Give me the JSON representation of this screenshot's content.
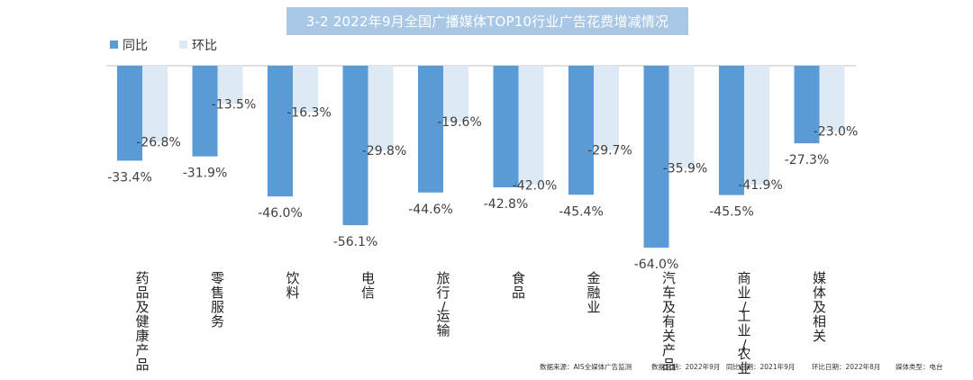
{
  "chart_data": {
    "type": "bar",
    "title": "3-2 2022年9月全国广播媒体TOP10行业广告花费增减情况",
    "categories": [
      "药品及健康产品",
      "零售服务",
      "饮料",
      "电信",
      "旅行/运输",
      "食品",
      "金融业",
      "汽车及有关产品",
      "商业/工业/农业",
      "媒体及相关"
    ],
    "series": [
      {
        "name": "同比",
        "color": "#5b9bd5",
        "values": [
          -33.4,
          -31.9,
          -46.0,
          -56.1,
          -44.6,
          -42.8,
          -45.4,
          -64.0,
          -45.5,
          -27.3
        ],
        "labels": [
          "-33.4%",
          "-31.9%",
          "-46.0%",
          "-56.1%",
          "-44.6%",
          "-42.8%",
          "-45.4%",
          "-64.0%",
          "-45.5%",
          "-27.3%"
        ]
      },
      {
        "name": "环比",
        "color": "#ddeaf6",
        "values": [
          -26.8,
          -13.5,
          -16.3,
          -29.8,
          -19.6,
          -42.0,
          -29.7,
          -35.9,
          -41.9,
          -23.0
        ],
        "labels": [
          "-26.8%",
          "-13.5%",
          "-16.3%",
          "-29.8%",
          "-19.6%",
          "-42.0%",
          "-29.7%",
          "-35.9%",
          "-41.9%",
          "-23.0%"
        ]
      }
    ],
    "ylim": [
      -70,
      0
    ],
    "legend": "top-left",
    "grid": false
  },
  "footer": {
    "source": "数据来源：AIS全媒体广告监测",
    "data_date": "数据日期：2022年9月",
    "yoy_date": "同比日期：2021年9月",
    "mom_date": "环比日期：2022年8月",
    "media_type": "媒体类型：电台"
  }
}
